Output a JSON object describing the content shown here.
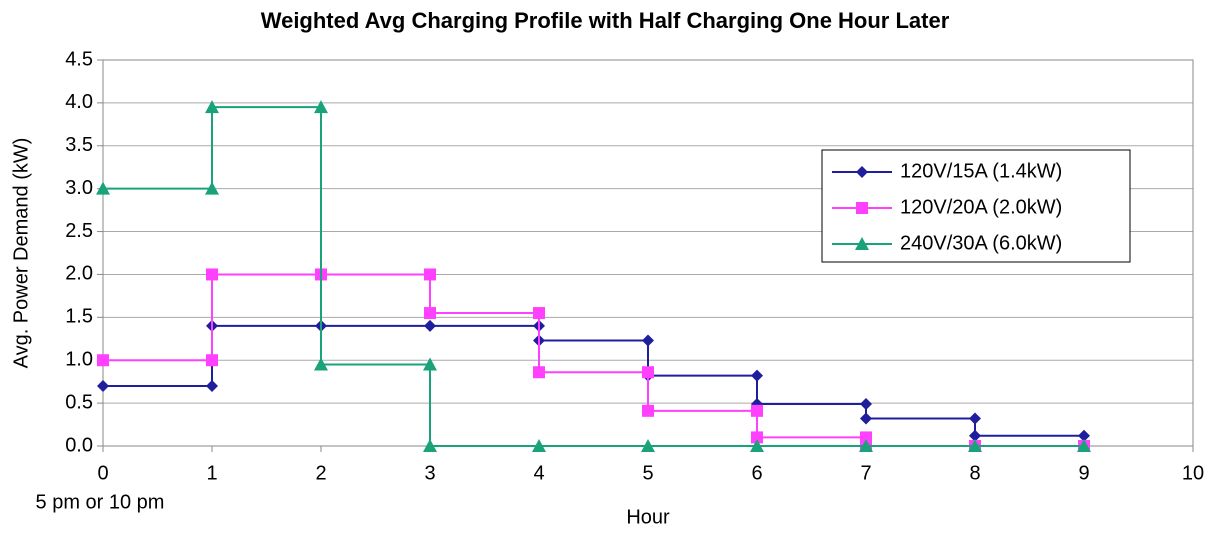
{
  "chart_data": {
    "type": "line",
    "title": "Weighted Avg Charging Profile with Half Charging One Hour Later",
    "x_label": "Hour",
    "y_label": "Avg. Power Demand (kW)",
    "annotation": "5 pm or 10 pm",
    "xlim": [
      0,
      10
    ],
    "xticks": [
      0,
      1,
      2,
      3,
      4,
      5,
      6,
      7,
      8,
      9,
      10
    ],
    "ylim": [
      0,
      4.5
    ],
    "yticks": [
      {
        "value": 0,
        "label": "0.0"
      },
      {
        "value": 0.5,
        "label": "0.5"
      },
      {
        "value": 1,
        "label": "1.0"
      },
      {
        "value": 1.5,
        "label": "1.5"
      },
      {
        "value": 2,
        "label": "2.0"
      },
      {
        "value": 2.5,
        "label": "2.5"
      },
      {
        "value": 3,
        "label": "3.0"
      },
      {
        "value": 3.5,
        "label": "3.5"
      },
      {
        "value": 4,
        "label": "4.0"
      },
      {
        "value": 4.5,
        "label": "4.5"
      }
    ],
    "grid": true,
    "legend": "upper right",
    "series": [
      {
        "name": "120V/15A (1.4kW)",
        "color": "#1f1f9e",
        "marker": "diamond",
        "x": [
          0,
          1,
          1,
          2,
          3,
          4,
          4,
          5,
          5,
          6,
          6,
          7,
          7,
          8,
          8,
          9
        ],
        "values": [
          0.7,
          0.7,
          1.4,
          1.4,
          1.4,
          1.4,
          1.23,
          1.23,
          0.82,
          0.82,
          0.49,
          0.49,
          0.32,
          0.32,
          0.12,
          0.12
        ]
      },
      {
        "name": "120V/20A (2.0kW)",
        "color": "#ff40ff",
        "marker": "square",
        "x": [
          0,
          1,
          1,
          2,
          3,
          3,
          4,
          4,
          5,
          5,
          6,
          6,
          7,
          7,
          8,
          9
        ],
        "values": [
          1.0,
          1.0,
          2.0,
          2.0,
          2.0,
          1.55,
          1.55,
          0.86,
          0.86,
          0.41,
          0.41,
          0.1,
          0.1,
          0,
          0,
          0
        ]
      },
      {
        "name": "240V/30A (6.0kW)",
        "color": "#1aa37a",
        "marker": "triangle",
        "x": [
          0,
          1,
          1,
          2,
          2,
          3,
          3,
          4,
          5,
          6,
          7,
          8,
          9
        ],
        "values": [
          3.0,
          3.0,
          3.95,
          3.95,
          0.95,
          0.95,
          0,
          0,
          0,
          0,
          0,
          0,
          0
        ]
      }
    ]
  }
}
